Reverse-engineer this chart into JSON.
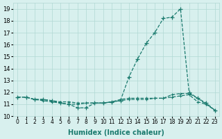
{
  "xlabel": "Humidex (Indice chaleur)",
  "x_values": [
    0,
    1,
    2,
    3,
    4,
    5,
    6,
    7,
    8,
    9,
    10,
    11,
    12,
    13,
    14,
    15,
    16,
    17,
    18,
    19,
    20,
    21,
    22,
    23
  ],
  "line1_y": [
    11.6,
    11.6,
    11.4,
    11.4,
    11.3,
    11.1,
    11.0,
    10.7,
    10.7,
    11.1,
    11.1,
    11.2,
    11.3,
    13.3,
    14.8,
    16.1,
    17.0,
    18.2,
    18.3,
    19.0,
    12.0,
    11.5,
    11.1,
    10.5
  ],
  "line2_y": [
    11.6,
    11.6,
    11.4,
    11.4,
    11.3,
    11.2,
    11.2,
    11.1,
    11.1,
    11.1,
    11.1,
    11.2,
    11.4,
    11.5,
    11.5,
    11.5,
    11.5,
    11.5,
    11.8,
    11.9,
    11.9,
    11.5,
    11.0,
    10.5
  ],
  "line3_y": [
    11.6,
    11.6,
    11.4,
    11.3,
    11.2,
    11.1,
    11.0,
    11.0,
    11.1,
    11.1,
    11.1,
    11.2,
    11.3,
    11.4,
    11.4,
    11.4,
    11.5,
    11.5,
    11.6,
    11.7,
    11.8,
    11.2,
    11.0,
    10.5
  ],
  "line_color": "#1a7a6e",
  "bg_color": "#d8f0ee",
  "grid_color": "#b0d8d4",
  "ylim": [
    10,
    19.5
  ],
  "xlim": [
    -0.5,
    23.5
  ],
  "yticks": [
    10,
    11,
    12,
    13,
    14,
    15,
    16,
    17,
    18,
    19
  ],
  "xtick_labels": [
    "0",
    "1",
    "2",
    "3",
    "4",
    "5",
    "6",
    "7",
    "8",
    "9",
    "10",
    "11",
    "12",
    "13",
    "14",
    "15",
    "16",
    "17",
    "18",
    "19",
    "20",
    "21",
    "22",
    "23"
  ]
}
